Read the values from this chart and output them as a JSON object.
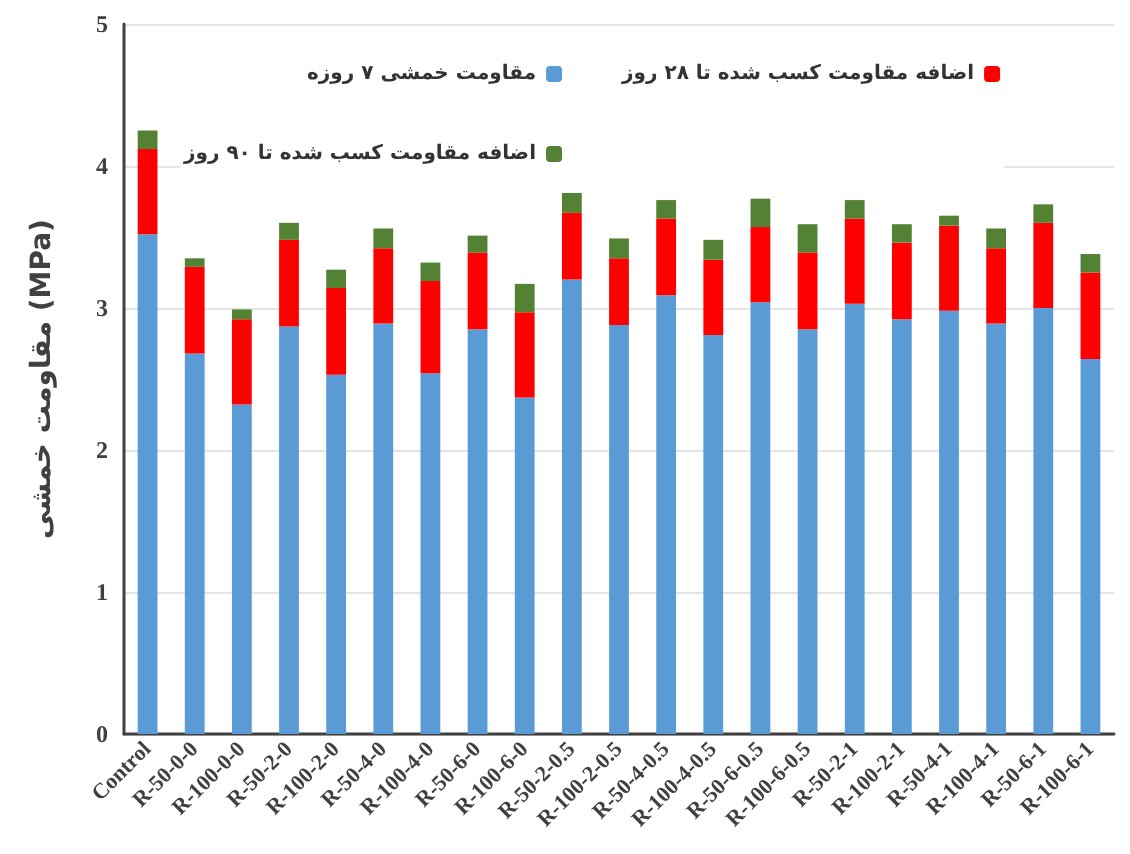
{
  "chart_data": {
    "type": "bar",
    "stacked": true,
    "ylabel": "مقاومت خمشی (MPa)",
    "categories": [
      "Control",
      "R-50-0-0",
      "R-100-0-0",
      "R-50-2-0",
      "R-100-2-0",
      "R-50-4-0",
      "R-100-4-0",
      "R-50-6-0",
      "R-100-6-0",
      "R-50-2-0.5",
      "R-100-2-0.5",
      "R-50-4-0.5",
      "R-100-4-0.5",
      "R-50-6-0.5",
      "R-100-6-0.5",
      "R-50-2-1",
      "R-100-2-1",
      "R-50-4-1",
      "R-100-4-1",
      "R-50-6-1",
      "R-100-6-1"
    ],
    "series": [
      {
        "name": "مقاومت خمشی ۷ روزه",
        "color": "#5b9bd5",
        "values": [
          3.52,
          2.68,
          2.32,
          2.87,
          2.53,
          2.89,
          2.54,
          2.85,
          2.37,
          3.2,
          2.88,
          3.09,
          2.81,
          3.04,
          2.85,
          3.03,
          2.92,
          2.98,
          2.89,
          3.0,
          2.64
        ]
      },
      {
        "name": "اضافه مقاومت کسب شده تا ۲۸ روز",
        "color": "#ff0000",
        "values": [
          0.6,
          0.61,
          0.6,
          0.61,
          0.61,
          0.53,
          0.65,
          0.54,
          0.6,
          0.47,
          0.47,
          0.54,
          0.53,
          0.53,
          0.54,
          0.6,
          0.54,
          0.6,
          0.53,
          0.6,
          0.61
        ]
      },
      {
        "name": "اضافه مقاومت کسب شده تا ۹۰ روز",
        "color": "#548235",
        "values": [
          0.13,
          0.06,
          0.07,
          0.12,
          0.13,
          0.14,
          0.13,
          0.12,
          0.2,
          0.14,
          0.14,
          0.13,
          0.14,
          0.2,
          0.2,
          0.13,
          0.13,
          0.07,
          0.14,
          0.13,
          0.13
        ]
      }
    ],
    "ylim": [
      0,
      5
    ],
    "yticks": [
      0,
      1,
      2,
      3,
      4,
      5
    ],
    "grid": "y",
    "legend": "top"
  }
}
